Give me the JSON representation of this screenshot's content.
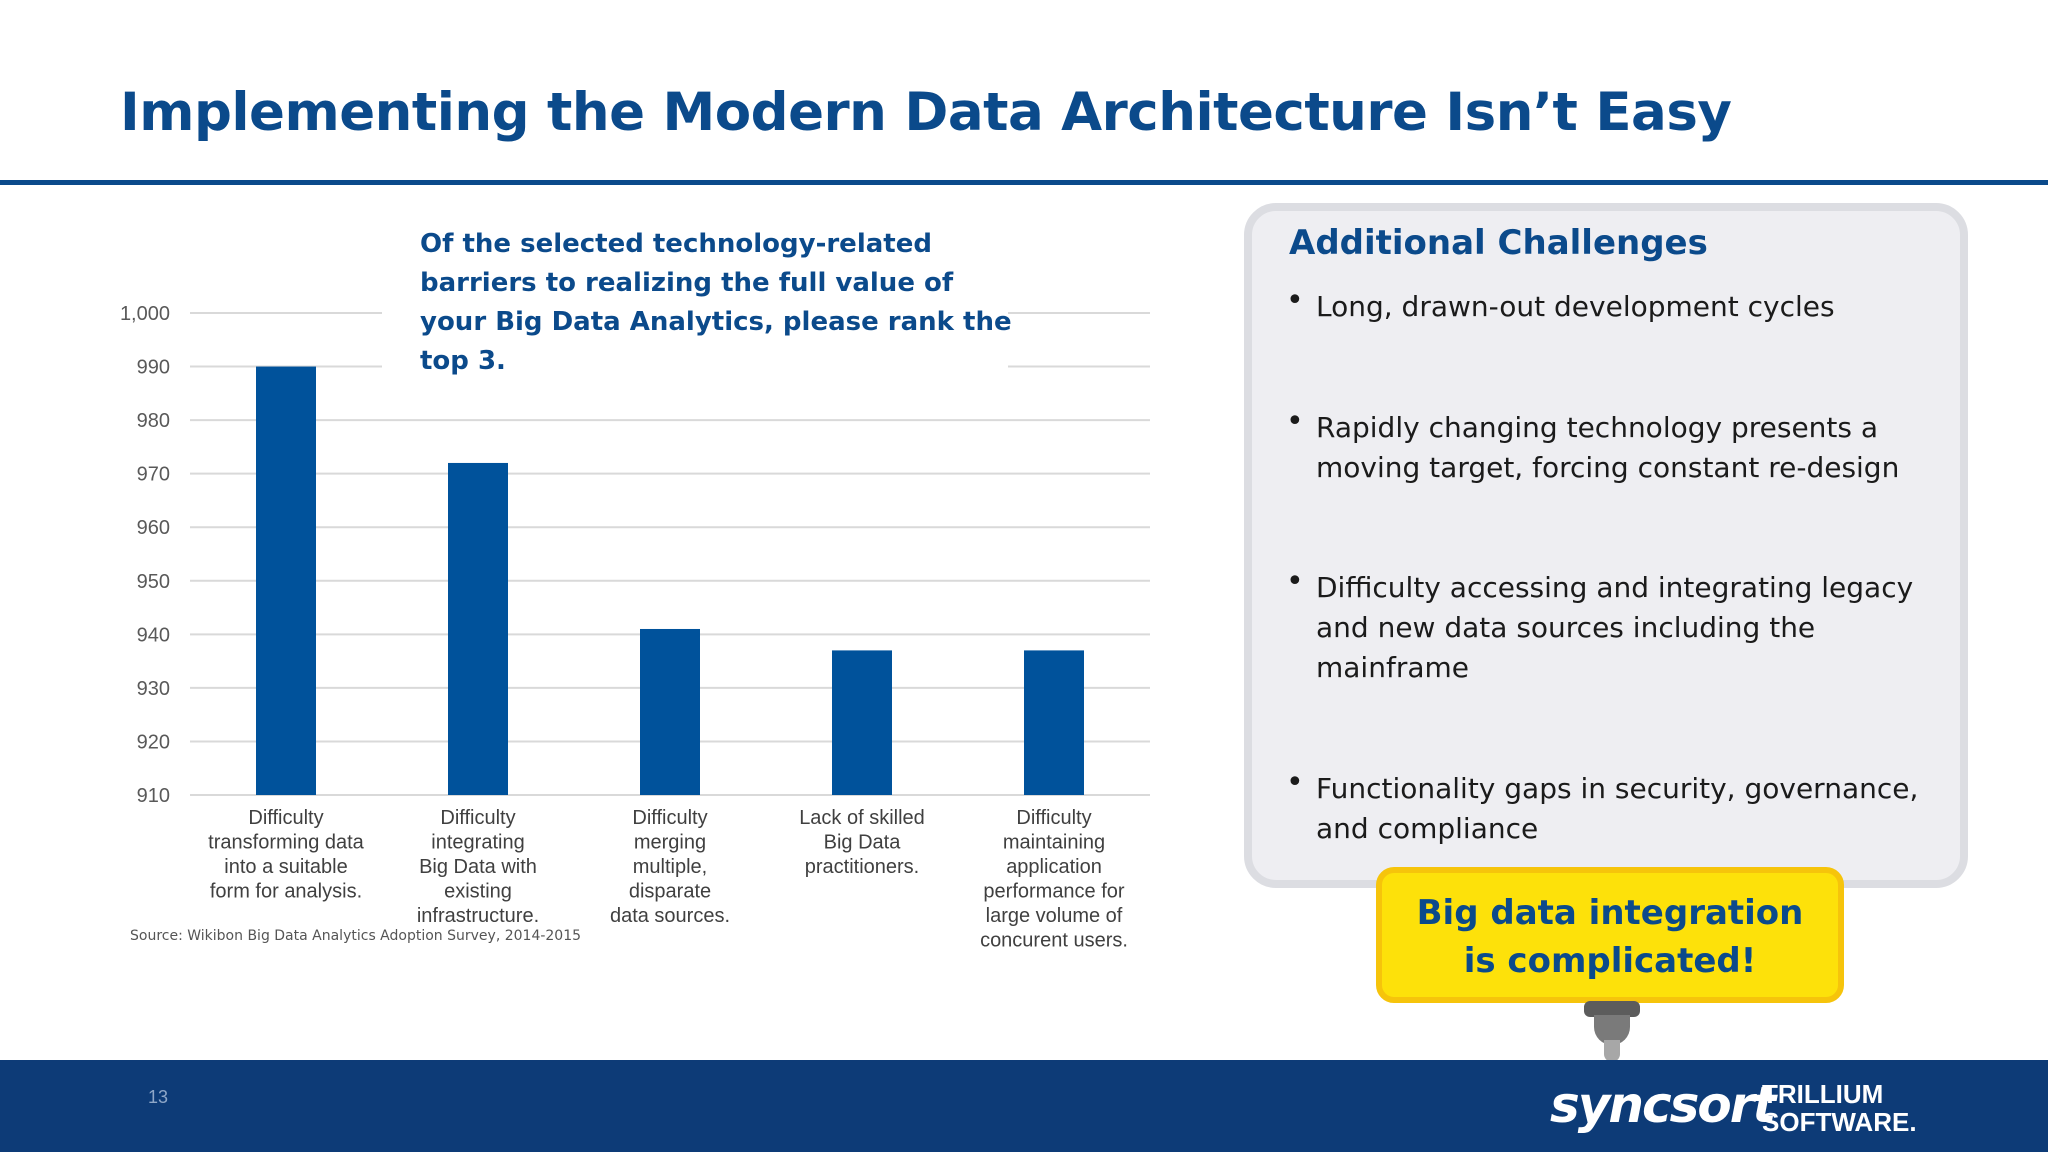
{
  "slide": {
    "title": "Implementing the Modern Data Architecture Isn’t Easy",
    "page_number": "13"
  },
  "chart_question": "Of the selected technology-related barriers to realizing the full value of your Big Data Analytics, please rank the top 3.",
  "chart_source": "Source: Wikibon Big Data Analytics Adoption Survey, 2014-2015",
  "challenges": {
    "title": "Additional Challenges",
    "items": [
      "Long, drawn-out development cycles",
      "Rapidly changing technology presents a moving target, forcing constant re-design",
      "Difficulty accessing and integrating legacy and new data sources including the mainframe",
      "Functionality gaps in security, governance, and compliance"
    ]
  },
  "callout": {
    "line1": "Big data integration",
    "line2": "is complicated!"
  },
  "footer": {
    "brand_primary": "syncsort",
    "brand_secondary_line1": "TRILLIUM",
    "brand_secondary_line2": "SOFTWARE."
  },
  "colors": {
    "accent": "#0b4a8b",
    "bar": "#00529b",
    "footer": "#0d3b77",
    "callout": "#fde10a"
  },
  "chart_data": {
    "type": "bar",
    "categories": [
      [
        "Difficulty",
        "transforming data",
        "into a suitable",
        "form for analysis."
      ],
      [
        "Difficulty",
        "integrating",
        "Big Data with",
        "existing",
        "infrastructure."
      ],
      [
        "Difficulty",
        "merging",
        "multiple,",
        "disparate",
        "data sources."
      ],
      [
        "Lack of skilled",
        "Big Data",
        "practitioners."
      ],
      [
        "Difficulty",
        "maintaining",
        "application",
        "performance for",
        "large volume of",
        "concurent users."
      ]
    ],
    "values": [
      990,
      972,
      941,
      937,
      937
    ],
    "ylim": [
      910,
      1000
    ],
    "yticks": [
      "910",
      "920",
      "930",
      "940",
      "950",
      "960",
      "970",
      "980",
      "990",
      "1,000"
    ],
    "grid": true
  }
}
